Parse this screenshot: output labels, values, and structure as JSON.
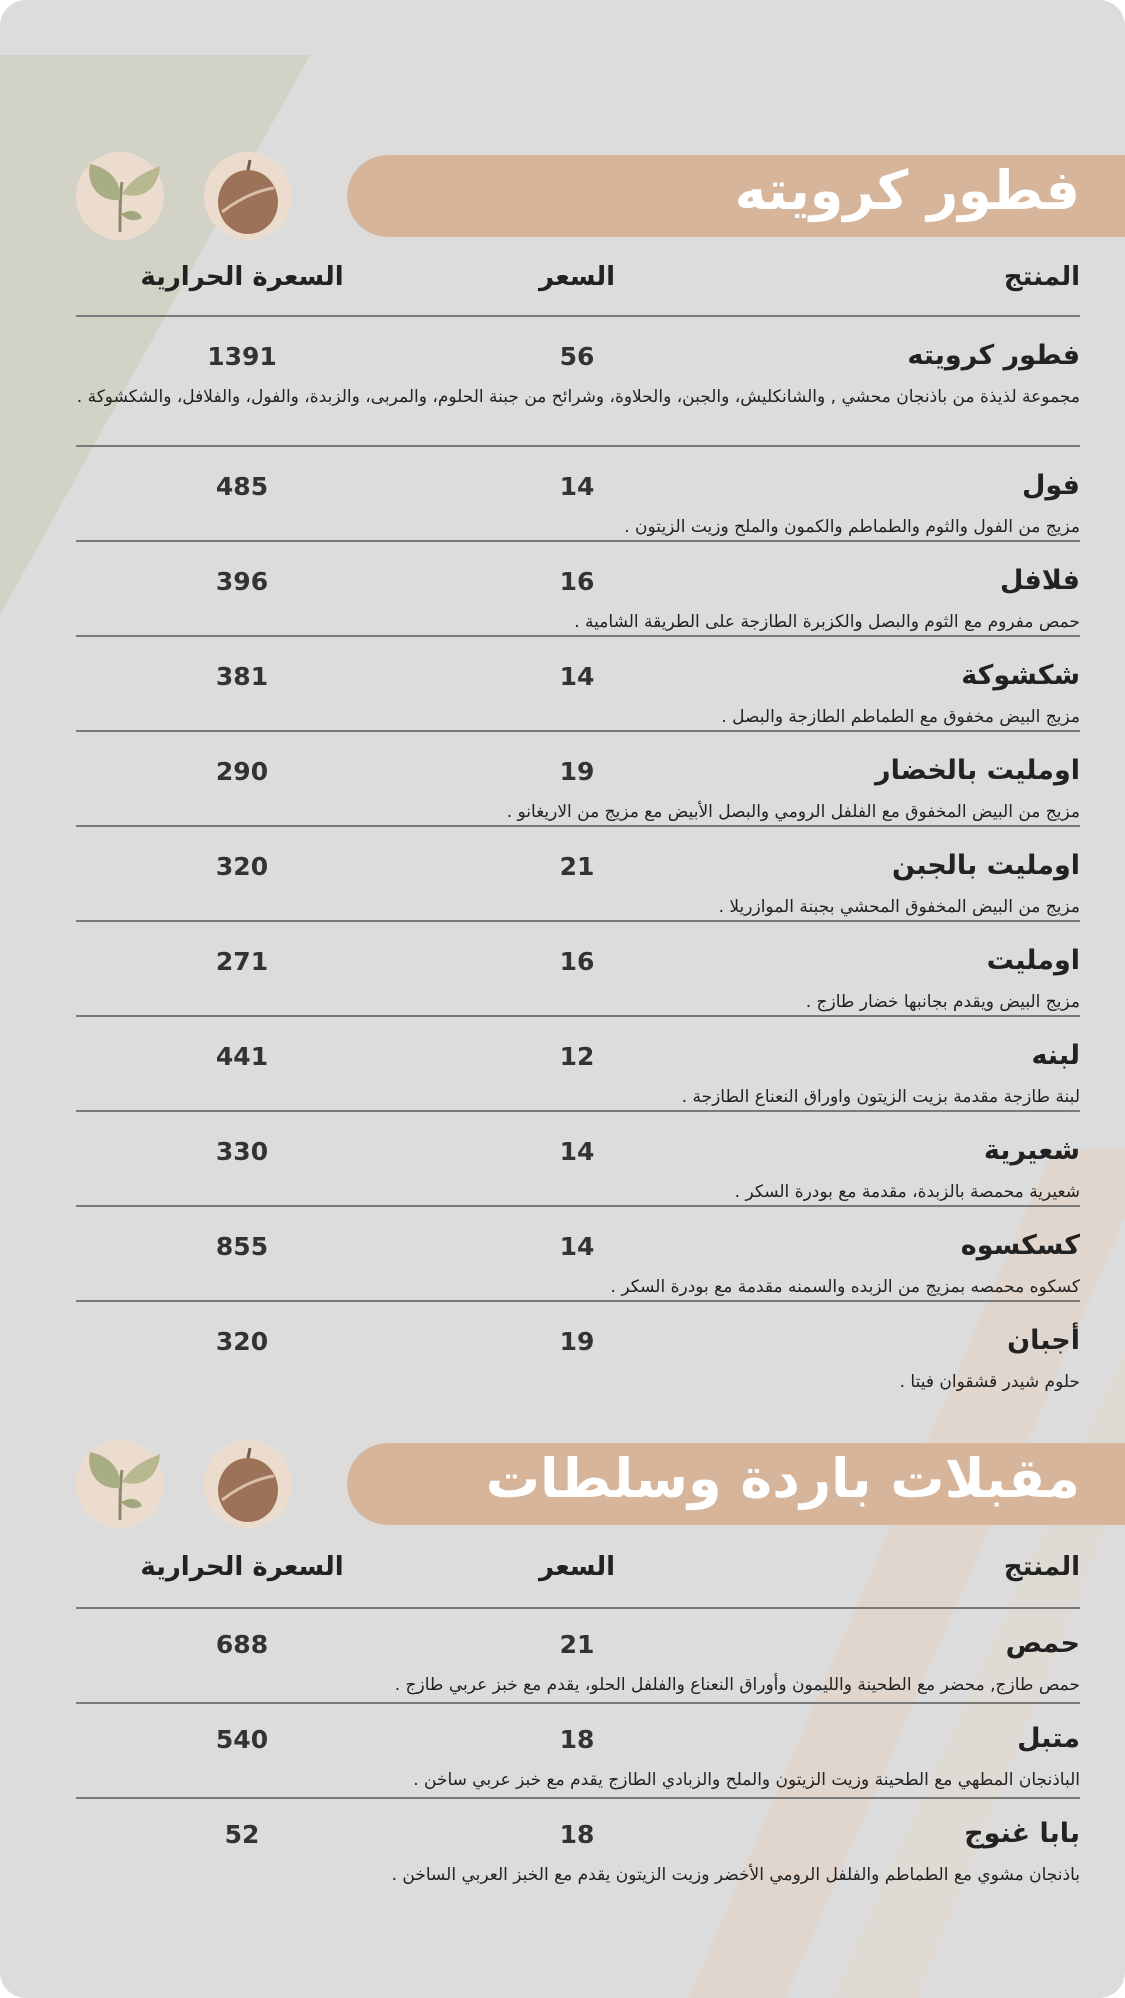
{
  "colors": {
    "band": "#d6b59b",
    "background": "#dcdcdc"
  },
  "icons": [
    "leaf-icon",
    "nut-icon"
  ],
  "columns": {
    "product": "المنتج",
    "price": "السعر",
    "calories": "السعرة الحرارية"
  },
  "sections": [
    {
      "title": "فطور كرويته",
      "items": [
        {
          "name": "فطور كرويته",
          "price": "56",
          "calories": "1391",
          "desc": "مجموعة لذيذة من باذنجان محشي , والشانكليش، والجبن، والحلاوة، وشرائح من جبنة الحلوم، والمربى، والزبدة، والفول، والفلافل، والشكشوكة ."
        },
        {
          "name": "فول",
          "price": "14",
          "calories": "485",
          "desc": "مزيج من الفول والثوم والطماطم والكمون والملح وزيت الزيتون ."
        },
        {
          "name": "فلافل",
          "price": "16",
          "calories": "396",
          "desc": "حمص مفروم مع الثوم والبصل والكزبرة الطازجة على الطريقة الشامية ."
        },
        {
          "name": "شكشوكة",
          "price": "14",
          "calories": "381",
          "desc": "مزيج البيض مخفوق مع الطماطم الطازجة والبصل ."
        },
        {
          "name": "اومليت بالخضار",
          "price": "19",
          "calories": "290",
          "desc": "مزيج من البيض المخفوق مع الفلفل الرومي والبصل الأبيض مع مزيج من الاريغانو ."
        },
        {
          "name": "اومليت بالجبن",
          "price": "21",
          "calories": "320",
          "desc": "مزيج من البيض المخفوق المحشي بجبنة الموازريلا ."
        },
        {
          "name": "اومليت",
          "price": "16",
          "calories": "271",
          "desc": "مزيج البيض ويقدم بجانبها خضار طازج ."
        },
        {
          "name": "لبنه",
          "price": "12",
          "calories": "441",
          "desc": "لبنة طازجة مقدمة بزيت الزيتون واوراق النعناع الطازجة ."
        },
        {
          "name": "شعيرية",
          "price": "14",
          "calories": "330",
          "desc": "شعيرية محمصة بالزبدة، مقدمة مع بودرة السكر ."
        },
        {
          "name": "كسكسوه",
          "price": "14",
          "calories": "855",
          "desc": "كسكوه محمصه بمزيج من الزبده والسمنه مقدمة مع بودرة السكر ."
        },
        {
          "name": "أجبان",
          "price": "19",
          "calories": "320",
          "desc": "حلوم شيدر قشقوان فيتا ."
        }
      ]
    },
    {
      "title": "مقبلات باردة وسلطات",
      "items": [
        {
          "name": "حمص",
          "price": "21",
          "calories": "688",
          "desc": "حمص طازج, محضر مع الطحينة والليمون وأوراق النعناع والفلفل الحلو، يقدم مع خبز عربي طازج ."
        },
        {
          "name": "متبل",
          "price": "18",
          "calories": "540",
          "desc": "الباذنجان المطهي مع الطحينة وزيت الزيتون والملح والزبادي الطازج يقدم مع خبز عربي ساخن ."
        },
        {
          "name": "بابا غنوج",
          "price": "18",
          "calories": "52",
          "desc": "باذنجان مشوي مع الطماطم والفلفل الرومي الأخضر وزيت الزيتون يقدم مع الخبز العربي الساخن ."
        }
      ]
    }
  ]
}
